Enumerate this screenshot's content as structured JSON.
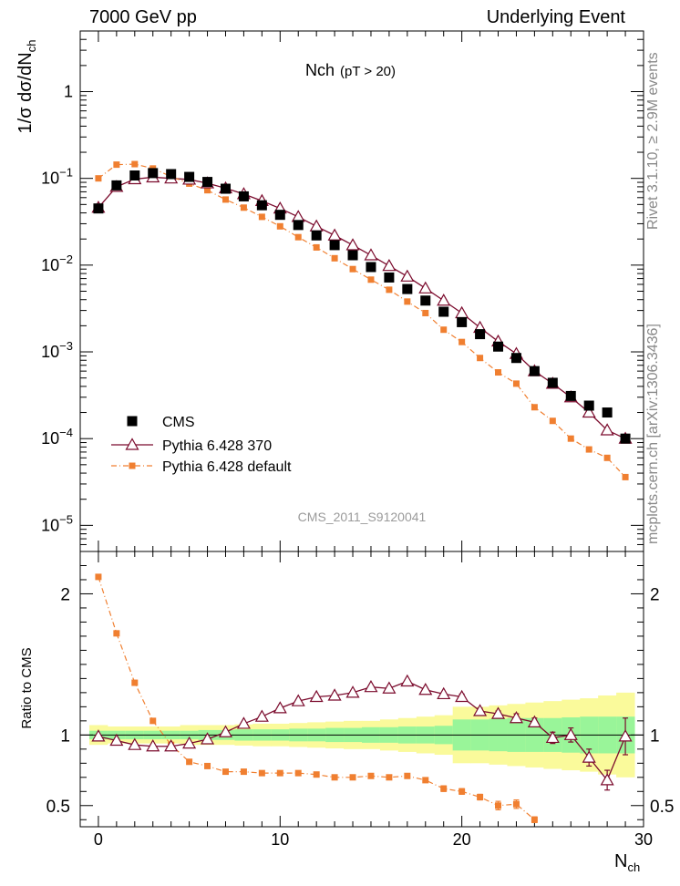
{
  "header": {
    "left": "7000 GeV pp",
    "right": "Underlying Event"
  },
  "side_labels": {
    "rivet": "Rivet 3.1.10, ≥ 2.9M events",
    "mcplots": "mcplots.cern.ch [arXiv:1306.3436]"
  },
  "chart_data": [
    {
      "type": "scatter",
      "panel": "main",
      "title": "Nch",
      "title_sub": "(pT > 20)",
      "ylabel": "1/σ dσ/dN",
      "ylabel_sub": "ch",
      "xlabel": "N",
      "xlabel_sub": "ch",
      "watermark": "CMS_2011_S9120041",
      "xlim": [
        -1,
        30
      ],
      "ylim": [
        5e-06,
        5
      ],
      "yscale": "log",
      "x_ticks": [
        0,
        10,
        20,
        30
      ],
      "y_ticks": [
        {
          "value": 1e-05,
          "base": "10",
          "exp": "−5"
        },
        {
          "value": 0.0001,
          "base": "10",
          "exp": "−4"
        },
        {
          "value": 0.001,
          "base": "10",
          "exp": "−3"
        },
        {
          "value": 0.01,
          "base": "10",
          "exp": "−2"
        },
        {
          "value": 0.1,
          "base": "10",
          "exp": "−1"
        },
        {
          "value": 1,
          "base": "1",
          "exp": ""
        }
      ],
      "legend_position": "bottom-left",
      "x": [
        0,
        1,
        2,
        3,
        4,
        5,
        6,
        7,
        8,
        9,
        10,
        11,
        12,
        13,
        14,
        15,
        16,
        17,
        18,
        19,
        20,
        21,
        22,
        23,
        24,
        25,
        26,
        27,
        28,
        29
      ],
      "series": [
        {
          "name": "CMS",
          "color": "#000000",
          "marker": "filled-square",
          "values": [
            0.045,
            0.083,
            0.108,
            0.115,
            0.112,
            0.104,
            0.091,
            0.076,
            0.062,
            0.049,
            0.038,
            0.029,
            0.022,
            0.017,
            0.013,
            0.0095,
            0.0072,
            0.0053,
            0.0039,
            0.0029,
            0.0022,
            0.0016,
            0.00115,
            0.00085,
            0.0006,
            0.00044,
            0.00031,
            0.00024,
            0.0002,
            0.0001
          ]
        },
        {
          "name": "Pythia 6.428 370",
          "color": "#7b0b2d",
          "marker": "open-triangle",
          "values": [
            0.046,
            0.08,
            0.098,
            0.103,
            0.1,
            0.097,
            0.088,
            0.077,
            0.066,
            0.055,
            0.045,
            0.036,
            0.028,
            0.022,
            0.017,
            0.013,
            0.0098,
            0.0074,
            0.0054,
            0.0039,
            0.0028,
            0.0019,
            0.00132,
            0.00095,
            0.0006,
            0.00043,
            0.0003,
            0.0002,
            0.000125,
            0.0001
          ]
        },
        {
          "name": "Pythia 6.428 default",
          "color": "#f07f30",
          "marker": "small-square",
          "values": [
            0.1,
            0.144,
            0.146,
            0.13,
            0.105,
            0.087,
            0.073,
            0.057,
            0.046,
            0.036,
            0.028,
            0.021,
            0.016,
            0.012,
            0.009,
            0.0068,
            0.0052,
            0.0038,
            0.0028,
            0.0018,
            0.0013,
            0.00085,
            0.00058,
            0.00043,
            0.00023,
            0.00016,
            0.0001,
            7.5e-05,
            6e-05,
            3.6e-05
          ]
        }
      ]
    },
    {
      "type": "scatter",
      "panel": "ratio",
      "ylabel": "Ratio to CMS",
      "xlim": [
        -1,
        30
      ],
      "ylim": [
        0.35,
        2.3
      ],
      "y_ticks": [
        0.5,
        1,
        2
      ],
      "x": [
        0,
        1,
        2,
        3,
        4,
        5,
        6,
        7,
        8,
        9,
        10,
        11,
        12,
        13,
        14,
        15,
        16,
        17,
        18,
        19,
        20,
        21,
        22,
        23,
        24,
        25,
        26,
        27,
        28,
        29
      ],
      "bands": {
        "stat_color": "#99f599",
        "syst_color": "#fafa9b",
        "stat_halfwidth": [
          0.03,
          0.03,
          0.03,
          0.03,
          0.03,
          0.03,
          0.035,
          0.035,
          0.04,
          0.04,
          0.04,
          0.045,
          0.045,
          0.05,
          0.05,
          0.055,
          0.055,
          0.06,
          0.06,
          0.065,
          0.11,
          0.11,
          0.115,
          0.12,
          0.12,
          0.12,
          0.125,
          0.13,
          0.13,
          0.13
        ],
        "syst_halfwidth": [
          0.07,
          0.06,
          0.06,
          0.06,
          0.06,
          0.07,
          0.07,
          0.07,
          0.075,
          0.08,
          0.08,
          0.085,
          0.09,
          0.095,
          0.1,
          0.1,
          0.11,
          0.12,
          0.13,
          0.14,
          0.2,
          0.2,
          0.21,
          0.22,
          0.23,
          0.24,
          0.25,
          0.26,
          0.28,
          0.3
        ]
      },
      "series": [
        {
          "name": "Pythia 6.428 370",
          "color": "#7b0b2d",
          "marker": "open-triangle",
          "values": [
            0.99,
            0.96,
            0.93,
            0.92,
            0.92,
            0.94,
            0.97,
            1.02,
            1.08,
            1.13,
            1.19,
            1.24,
            1.27,
            1.28,
            1.3,
            1.34,
            1.33,
            1.38,
            1.32,
            1.29,
            1.27,
            1.17,
            1.15,
            1.12,
            1.09,
            0.98,
            1.0,
            0.84,
            0.68,
            0.99
          ],
          "errors": [
            0.01,
            0.01,
            0.01,
            0.01,
            0.01,
            0.01,
            0.01,
            0.01,
            0.01,
            0.01,
            0.01,
            0.01,
            0.01,
            0.01,
            0.01,
            0.01,
            0.01,
            0.01,
            0.01,
            0.01,
            0.02,
            0.02,
            0.02,
            0.03,
            0.03,
            0.04,
            0.05,
            0.06,
            0.07,
            0.13
          ]
        },
        {
          "name": "Pythia 6.428 default",
          "color": "#f07f30",
          "marker": "small-square",
          "values": [
            2.12,
            1.72,
            1.37,
            1.1,
            0.93,
            0.81,
            0.78,
            0.74,
            0.74,
            0.73,
            0.73,
            0.73,
            0.72,
            0.7,
            0.7,
            0.71,
            0.7,
            0.71,
            0.68,
            0.62,
            0.6,
            0.56,
            0.5,
            0.51,
            0.4
          ],
          "errors": [
            0,
            0,
            0,
            0,
            0,
            0,
            0,
            0,
            0,
            0,
            0,
            0,
            0,
            0,
            0,
            0,
            0,
            0,
            0.01,
            0.02,
            0.02,
            0.02,
            0.03,
            0.03,
            0.02
          ]
        }
      ]
    }
  ]
}
